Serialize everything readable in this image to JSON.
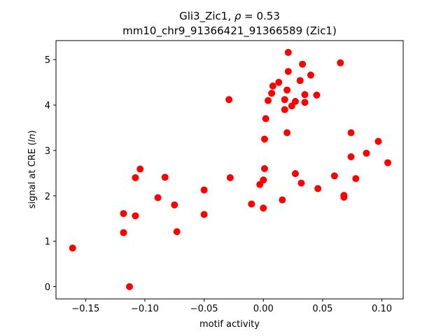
{
  "chart_data": {
    "type": "scatter",
    "title_line1_prefix": "Gli3_Zic1, ",
    "title_rho_symbol": "ρ",
    "title_rho_value": " = 0.53",
    "title_line2": "mm10_chr9_91366421_91366589 (Zic1)",
    "xlabel": "motif activity",
    "ylabel_prefix": "signal at CRE (",
    "ylabel_italic": "ln",
    "ylabel_suffix": ")",
    "xlim": [
      -0.175,
      0.118
    ],
    "ylim": [
      -0.27,
      5.42
    ],
    "xticks": [
      -0.15,
      -0.1,
      -0.05,
      0.0,
      0.05,
      0.1
    ],
    "xtick_labels": [
      "−0.15",
      "−0.10",
      "−0.05",
      "0.00",
      "0.05",
      "0.10"
    ],
    "yticks": [
      0,
      1,
      2,
      3,
      4,
      5
    ],
    "ytick_labels": [
      "0",
      "1",
      "2",
      "3",
      "4",
      "5"
    ],
    "grid": false,
    "marker_color": "#ff0000",
    "points": [
      {
        "x": -0.161,
        "y": 0.85
      },
      {
        "x": -0.113,
        "y": 0.0
      },
      {
        "x": -0.118,
        "y": 1.61
      },
      {
        "x": -0.118,
        "y": 1.19
      },
      {
        "x": -0.108,
        "y": 1.56
      },
      {
        "x": -0.108,
        "y": 2.4
      },
      {
        "x": -0.104,
        "y": 2.59
      },
      {
        "x": -0.089,
        "y": 1.96
      },
      {
        "x": -0.083,
        "y": 2.41
      },
      {
        "x": -0.075,
        "y": 1.8
      },
      {
        "x": -0.073,
        "y": 1.21
      },
      {
        "x": -0.05,
        "y": 1.59
      },
      {
        "x": -0.05,
        "y": 2.13
      },
      {
        "x": -0.029,
        "y": 4.12
      },
      {
        "x": -0.028,
        "y": 2.4
      },
      {
        "x": -0.01,
        "y": 1.82
      },
      {
        "x": -0.003,
        "y": 2.25
      },
      {
        "x": 0.0,
        "y": 2.35
      },
      {
        "x": 0.0,
        "y": 1.73
      },
      {
        "x": 0.001,
        "y": 2.6
      },
      {
        "x": 0.001,
        "y": 3.25
      },
      {
        "x": 0.002,
        "y": 3.7
      },
      {
        "x": 0.004,
        "y": 4.1
      },
      {
        "x": 0.007,
        "y": 4.26
      },
      {
        "x": 0.008,
        "y": 4.42
      },
      {
        "x": 0.013,
        "y": 4.5
      },
      {
        "x": 0.016,
        "y": 1.91
      },
      {
        "x": 0.018,
        "y": 4.12
      },
      {
        "x": 0.018,
        "y": 3.9
      },
      {
        "x": 0.02,
        "y": 4.33
      },
      {
        "x": 0.02,
        "y": 3.39
      },
      {
        "x": 0.021,
        "y": 4.74
      },
      {
        "x": 0.021,
        "y": 5.16
      },
      {
        "x": 0.024,
        "y": 3.98
      },
      {
        "x": 0.027,
        "y": 4.08
      },
      {
        "x": 0.027,
        "y": 2.49
      },
      {
        "x": 0.031,
        "y": 4.54
      },
      {
        "x": 0.032,
        "y": 2.28
      },
      {
        "x": 0.033,
        "y": 4.9
      },
      {
        "x": 0.035,
        "y": 4.23
      },
      {
        "x": 0.035,
        "y": 4.06
      },
      {
        "x": 0.04,
        "y": 4.66
      },
      {
        "x": 0.045,
        "y": 4.22
      },
      {
        "x": 0.046,
        "y": 2.16
      },
      {
        "x": 0.06,
        "y": 2.44
      },
      {
        "x": 0.065,
        "y": 4.93
      },
      {
        "x": 0.068,
        "y": 2.01
      },
      {
        "x": 0.068,
        "y": 1.97
      },
      {
        "x": 0.074,
        "y": 3.39
      },
      {
        "x": 0.074,
        "y": 2.86
      },
      {
        "x": 0.078,
        "y": 2.38
      },
      {
        "x": 0.087,
        "y": 2.94
      },
      {
        "x": 0.097,
        "y": 3.2
      },
      {
        "x": 0.105,
        "y": 2.73
      }
    ]
  }
}
